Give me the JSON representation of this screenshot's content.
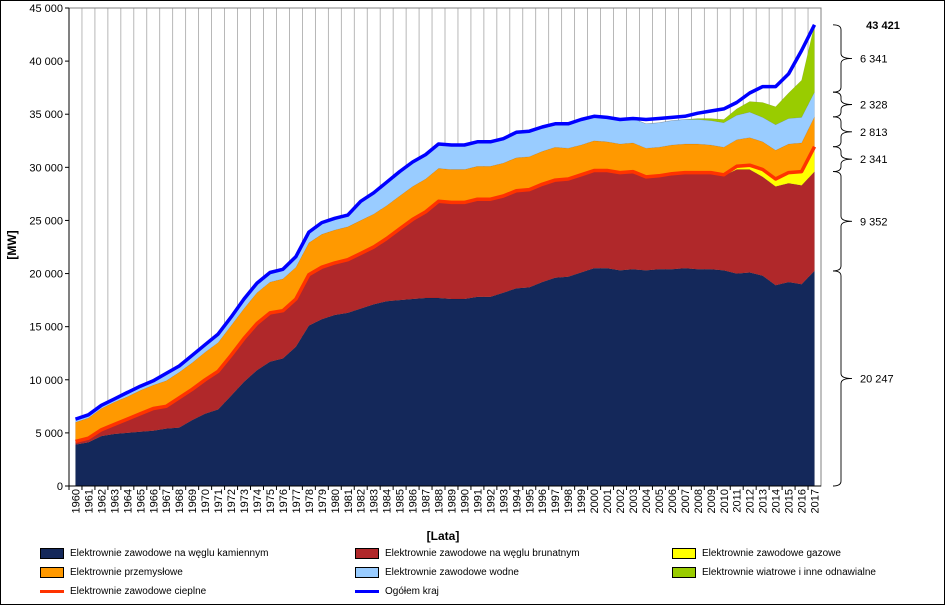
{
  "chart_data": {
    "type": "area",
    "xlabel": "[Lata]",
    "ylabel": "[MW]",
    "ylim": [
      0,
      45000
    ],
    "yticks": [
      "0",
      "5 000",
      "10 000",
      "15 000",
      "20 000",
      "25 000",
      "30 000",
      "35 000",
      "40 000",
      "45 000"
    ],
    "grid": "vertical",
    "legend_position": "bottom",
    "categories": [
      "1960",
      "1961",
      "1962",
      "1963",
      "1964",
      "1965",
      "1966",
      "1967",
      "1968",
      "1969",
      "1970",
      "1971",
      "1972",
      "1973",
      "1974",
      "1975",
      "1976",
      "1977",
      "1978",
      "1979",
      "1980",
      "1981",
      "1982",
      "1983",
      "1984",
      "1985",
      "1986",
      "1987",
      "1988",
      "1989",
      "1990",
      "1991",
      "1992",
      "1993",
      "1994",
      "1995",
      "1996",
      "1997",
      "1998",
      "1999",
      "2000",
      "2001",
      "2002",
      "2003",
      "2004",
      "2005",
      "2006",
      "2007",
      "2008",
      "2009",
      "2010",
      "2011",
      "2012",
      "2013",
      "2014",
      "2015",
      "2016",
      "2017"
    ],
    "series": [
      {
        "name": "Elektrownie zawodowe na węglu kamiennym",
        "color": "#14285a",
        "kind": "area",
        "values": [
          3900,
          4100,
          4700,
          4900,
          5000,
          5100,
          5200,
          5400,
          5500,
          6200,
          6800,
          7200,
          8500,
          9800,
          10900,
          11700,
          12000,
          13100,
          15100,
          15700,
          16100,
          16300,
          16700,
          17100,
          17400,
          17500,
          17600,
          17700,
          17700,
          17600,
          17600,
          17800,
          17800,
          18200,
          18600,
          18700,
          19200,
          19600,
          19700,
          20100,
          20500,
          20500,
          20300,
          20400,
          20300,
          20400,
          20400,
          20500,
          20400,
          20400,
          20300,
          20000,
          20100,
          19800,
          18900,
          19200,
          19000,
          20247
        ]
      },
      {
        "name": "Elektrownie zawodowe na węglu brunatnym",
        "color": "#b0282a",
        "kind": "area",
        "values": [
          300,
          400,
          600,
          900,
          1300,
          1700,
          2100,
          2100,
          2800,
          2900,
          3200,
          3600,
          3800,
          4100,
          4400,
          4600,
          4500,
          4500,
          4800,
          4900,
          4900,
          5000,
          5200,
          5400,
          5900,
          6700,
          7500,
          8100,
          9100,
          9100,
          9100,
          9200,
          9200,
          9100,
          9200,
          9200,
          9200,
          9200,
          9200,
          9200,
          9200,
          9200,
          9200,
          9200,
          8800,
          8800,
          9000,
          9000,
          9100,
          9100,
          8900,
          9800,
          9700,
          9300,
          9300,
          9300,
          9300,
          9352
        ]
      },
      {
        "name": "Elektrownie zawodowe gazowe",
        "color": "#ffff00",
        "kind": "area",
        "values": [
          0,
          0,
          0,
          0,
          0,
          0,
          0,
          0,
          0,
          0,
          0,
          0,
          0,
          0,
          0,
          0,
          0,
          0,
          0,
          0,
          0,
          0,
          0,
          0,
          0,
          0,
          0,
          0,
          0,
          0,
          0,
          0,
          0,
          0,
          0,
          0,
          0,
          0,
          0,
          0,
          0,
          0,
          0,
          0,
          0,
          0,
          0,
          0,
          0,
          0,
          100,
          300,
          400,
          700,
          700,
          1000,
          1300,
          2341
        ]
      },
      {
        "name": "Elektrownie zawodowe cieplne",
        "color": "#ff3300",
        "kind": "line",
        "values": [
          4200,
          4500,
          5300,
          5800,
          6300,
          6800,
          7300,
          7500,
          8300,
          9100,
          10000,
          10800,
          12300,
          13900,
          15300,
          16300,
          16500,
          17600,
          19900,
          20600,
          21000,
          21300,
          21900,
          22500,
          23300,
          24200,
          25100,
          25800,
          26800,
          26700,
          26700,
          27000,
          27000,
          27300,
          27800,
          27900,
          28400,
          28800,
          28900,
          29300,
          29700,
          29700,
          29500,
          29600,
          29100,
          29200,
          29400,
          29500,
          29500,
          29500,
          29300,
          30100,
          30200,
          29800,
          28900,
          29500,
          29600,
          31940
        ]
      },
      {
        "name": "Elektrownie przemysłowe",
        "color": "#ff9900",
        "kind": "area",
        "values": [
          1800,
          1900,
          2000,
          2100,
          2100,
          2200,
          2200,
          2400,
          2400,
          2500,
          2600,
          2700,
          2800,
          2800,
          2900,
          2900,
          3000,
          3000,
          3000,
          3100,
          3100,
          3100,
          3100,
          3100,
          3100,
          3100,
          3100,
          3100,
          3100,
          3100,
          3100,
          3100,
          3100,
          3100,
          3100,
          3100,
          3100,
          3100,
          2900,
          2800,
          2800,
          2700,
          2700,
          2700,
          2700,
          2700,
          2700,
          2700,
          2700,
          2600,
          2600,
          2500,
          2600,
          2600,
          2700,
          2700,
          2700,
          2813
        ]
      },
      {
        "name": "Elektrownie zawodowe wodne",
        "color": "#99ccff",
        "kind": "area",
        "values": [
          300,
          300,
          300,
          300,
          400,
          400,
          400,
          600,
          600,
          600,
          700,
          800,
          800,
          900,
          900,
          900,
          900,
          1000,
          1000,
          1100,
          1100,
          1100,
          1800,
          2000,
          2200,
          2300,
          2300,
          2300,
          2300,
          2300,
          2300,
          2300,
          2300,
          2300,
          2400,
          2400,
          2300,
          2200,
          2300,
          2300,
          2300,
          2300,
          2300,
          2300,
          2300,
          2300,
          2300,
          2300,
          2300,
          2300,
          2300,
          2300,
          2400,
          2300,
          2400,
          2400,
          2400,
          2328
        ]
      },
      {
        "name": "Elektrownie wiatrowe i inne odnawialne",
        "color": "#99cc00",
        "kind": "area",
        "values": [
          0,
          0,
          0,
          0,
          0,
          0,
          0,
          0,
          0,
          0,
          0,
          0,
          0,
          0,
          0,
          0,
          0,
          0,
          0,
          0,
          0,
          0,
          0,
          0,
          0,
          0,
          0,
          0,
          0,
          0,
          0,
          0,
          0,
          0,
          0,
          0,
          0,
          0,
          0,
          0,
          0,
          0,
          0,
          0,
          0,
          0,
          0,
          0,
          100,
          200,
          300,
          600,
          1000,
          1400,
          1700,
          2400,
          3500,
          6341
        ]
      },
      {
        "name": "Ogółem kraj",
        "color": "#0000ff",
        "kind": "line",
        "values": [
          6300,
          6700,
          7600,
          8200,
          8800,
          9400,
          9900,
          10600,
          11300,
          12300,
          13300,
          14300,
          15900,
          17600,
          19100,
          20100,
          20400,
          21600,
          23900,
          24800,
          25200,
          25500,
          26800,
          27600,
          28600,
          29600,
          30500,
          31200,
          32200,
          32100,
          32100,
          32400,
          32400,
          32700,
          33300,
          33400,
          33800,
          34100,
          34100,
          34500,
          34800,
          34700,
          34500,
          34600,
          34500,
          34600,
          34700,
          34800,
          35100,
          35300,
          35500,
          36100,
          37000,
          37600,
          37600,
          38800,
          41000,
          43421
        ]
      }
    ],
    "annotations": [
      {
        "label": "43 421",
        "series": "Ogółem kraj",
        "value": 43421,
        "bold": true
      },
      {
        "label": "6 341",
        "from": 37080,
        "to": 43421
      },
      {
        "label": "2 328",
        "from": 34752,
        "to": 37080
      },
      {
        "label": "2 813",
        "from": 31939,
        "to": 34752
      },
      {
        "label": "2 341",
        "from": 29598,
        "to": 31939
      },
      {
        "label": "9 352",
        "from": 20247,
        "to": 29598
      },
      {
        "label": "20 247",
        "from": 0,
        "to": 20247
      }
    ]
  },
  "legend": {
    "items": [
      {
        "label": "Elektrownie zawodowe na węglu kamiennym",
        "color": "#14285a",
        "kind": "area"
      },
      {
        "label": "Elektrownie zawodowe na węglu brunatnym",
        "color": "#b0282a",
        "kind": "area"
      },
      {
        "label": "Elektrownie zawodowe gazowe",
        "color": "#ffff00",
        "kind": "area"
      },
      {
        "label": "Elektrownie przemysłowe",
        "color": "#ff9900",
        "kind": "area"
      },
      {
        "label": "Elektrownie zawodowe wodne",
        "color": "#99ccff",
        "kind": "area"
      },
      {
        "label": "Elektrownie wiatrowe i inne odnawialne",
        "color": "#99cc00",
        "kind": "area"
      },
      {
        "label": "Elektrownie zawodowe cieplne",
        "color": "#ff3300",
        "kind": "line"
      },
      {
        "label": "Ogółem kraj",
        "color": "#0000ff",
        "kind": "line"
      }
    ]
  }
}
